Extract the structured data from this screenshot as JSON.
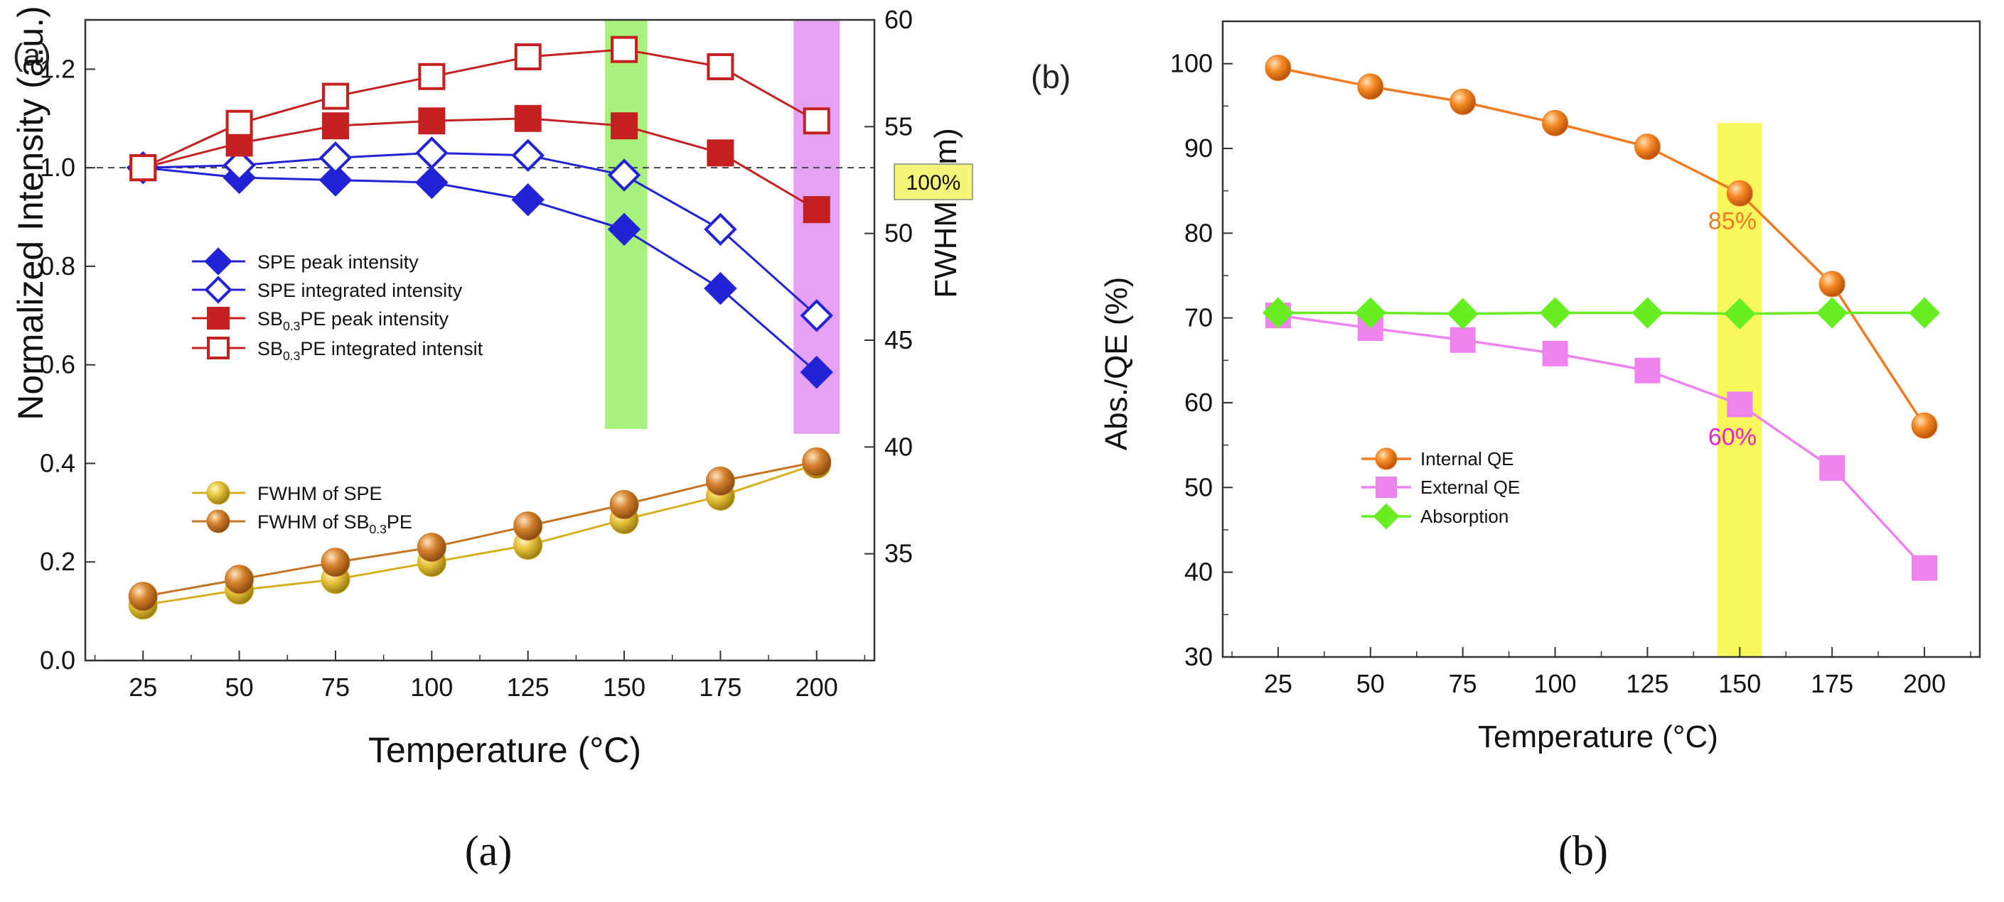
{
  "chart_data": [
    {
      "type": "line",
      "panel_label": "(a)",
      "caption": "(a)",
      "xlabel": "Temperature (°C)",
      "ylabel": "Normalized Intensity (a.u.)",
      "ylabel_right": "FWHM (nm)",
      "xlim": [
        10,
        215
      ],
      "ylim": [
        0.0,
        1.3
      ],
      "ylim_right": [
        30,
        60
      ],
      "x_ticks": [
        25,
        50,
        75,
        100,
        125,
        150,
        175,
        200
      ],
      "y_ticks": [
        "0.0",
        "0.2",
        "0.4",
        "0.6",
        "0.8",
        "1.0",
        "1.2"
      ],
      "y_ticks_right": [
        "35",
        "40",
        "45",
        "50",
        "55",
        "60"
      ],
      "reference_line": {
        "y": 1.0,
        "label": "100%"
      },
      "highlight_bands": [
        {
          "x_from": 145,
          "x_to": 156,
          "y_from": 0.47,
          "y_to": 1.3,
          "color": "#99ee66"
        },
        {
          "x_from": 194,
          "x_to": 206,
          "y_from": 0.46,
          "y_to": 1.3,
          "color": "#e090f0"
        }
      ],
      "x": [
        25,
        50,
        75,
        100,
        125,
        150,
        175,
        200
      ],
      "series": [
        {
          "name": "SPE peak intensity",
          "marker": "diamond-filled",
          "color": "#2323d6",
          "values": [
            1.0,
            0.98,
            0.975,
            0.97,
            0.935,
            0.875,
            0.755,
            0.585
          ]
        },
        {
          "name": "SPE integrated intensity",
          "marker": "diamond-open",
          "color": "#2323d6",
          "values": [
            1.0,
            1.005,
            1.02,
            1.03,
            1.025,
            0.985,
            0.875,
            0.7
          ]
        },
        {
          "name": "SB0.3PE peak intensity",
          "marker": "square-filled",
          "color": "#c42020",
          "values": [
            1.0,
            1.05,
            1.085,
            1.095,
            1.1,
            1.085,
            1.03,
            0.915
          ]
        },
        {
          "name": "SB0.3PE integrated intensit",
          "marker": "square-open",
          "color": "#c42020",
          "values": [
            1.0,
            1.09,
            1.145,
            1.185,
            1.225,
            1.24,
            1.205,
            1.095
          ]
        },
        {
          "name": "FWHM of SPE",
          "marker": "sphere",
          "color": "#d4b01e",
          "axis": "right",
          "values": [
            32.6,
            33.3,
            33.8,
            34.6,
            35.4,
            36.6,
            37.7,
            39.2
          ]
        },
        {
          "name": "FWHM of SB0.3PE",
          "marker": "sphere",
          "color": "#c47422",
          "axis": "right",
          "values": [
            33.0,
            33.8,
            34.6,
            35.3,
            36.3,
            37.3,
            38.4,
            39.3
          ]
        }
      ]
    },
    {
      "type": "line",
      "panel_label": "(b)",
      "caption": "(b)",
      "xlabel": "Temperature (°C)",
      "ylabel": "Abs./QE (%)",
      "xlim": [
        10,
        215
      ],
      "ylim": [
        30,
        105
      ],
      "x_ticks": [
        25,
        50,
        75,
        100,
        125,
        150,
        175,
        200
      ],
      "y_ticks": [
        "30",
        "40",
        "50",
        "60",
        "70",
        "80",
        "90",
        "100"
      ],
      "highlight_bands": [
        {
          "x_from": 144,
          "x_to": 156,
          "y_from": 30,
          "y_to": 93,
          "color": "#f7f74a"
        }
      ],
      "annotations": [
        {
          "text": "85%",
          "x": 148,
          "y": 80.5,
          "color": "#f07a22"
        },
        {
          "text": "60%",
          "x": 148,
          "y": 55.0,
          "color": "#ee22cc"
        }
      ],
      "x": [
        25,
        50,
        75,
        100,
        125,
        150,
        175,
        200
      ],
      "series": [
        {
          "name": "Internal QE",
          "marker": "sphere",
          "color": "#f07a22",
          "values": [
            99.5,
            97.3,
            95.5,
            93.0,
            90.2,
            84.7,
            74.0,
            57.3
          ]
        },
        {
          "name": "External QE",
          "marker": "square-filled",
          "color": "#ee82ee",
          "values": [
            70.3,
            68.8,
            67.4,
            65.8,
            63.8,
            59.8,
            52.3,
            40.5
          ]
        },
        {
          "name": "Absorption",
          "marker": "diamond-filled",
          "color": "#66ee22",
          "values": [
            70.6,
            70.6,
            70.5,
            70.6,
            70.6,
            70.5,
            70.6,
            70.6
          ]
        }
      ]
    }
  ]
}
